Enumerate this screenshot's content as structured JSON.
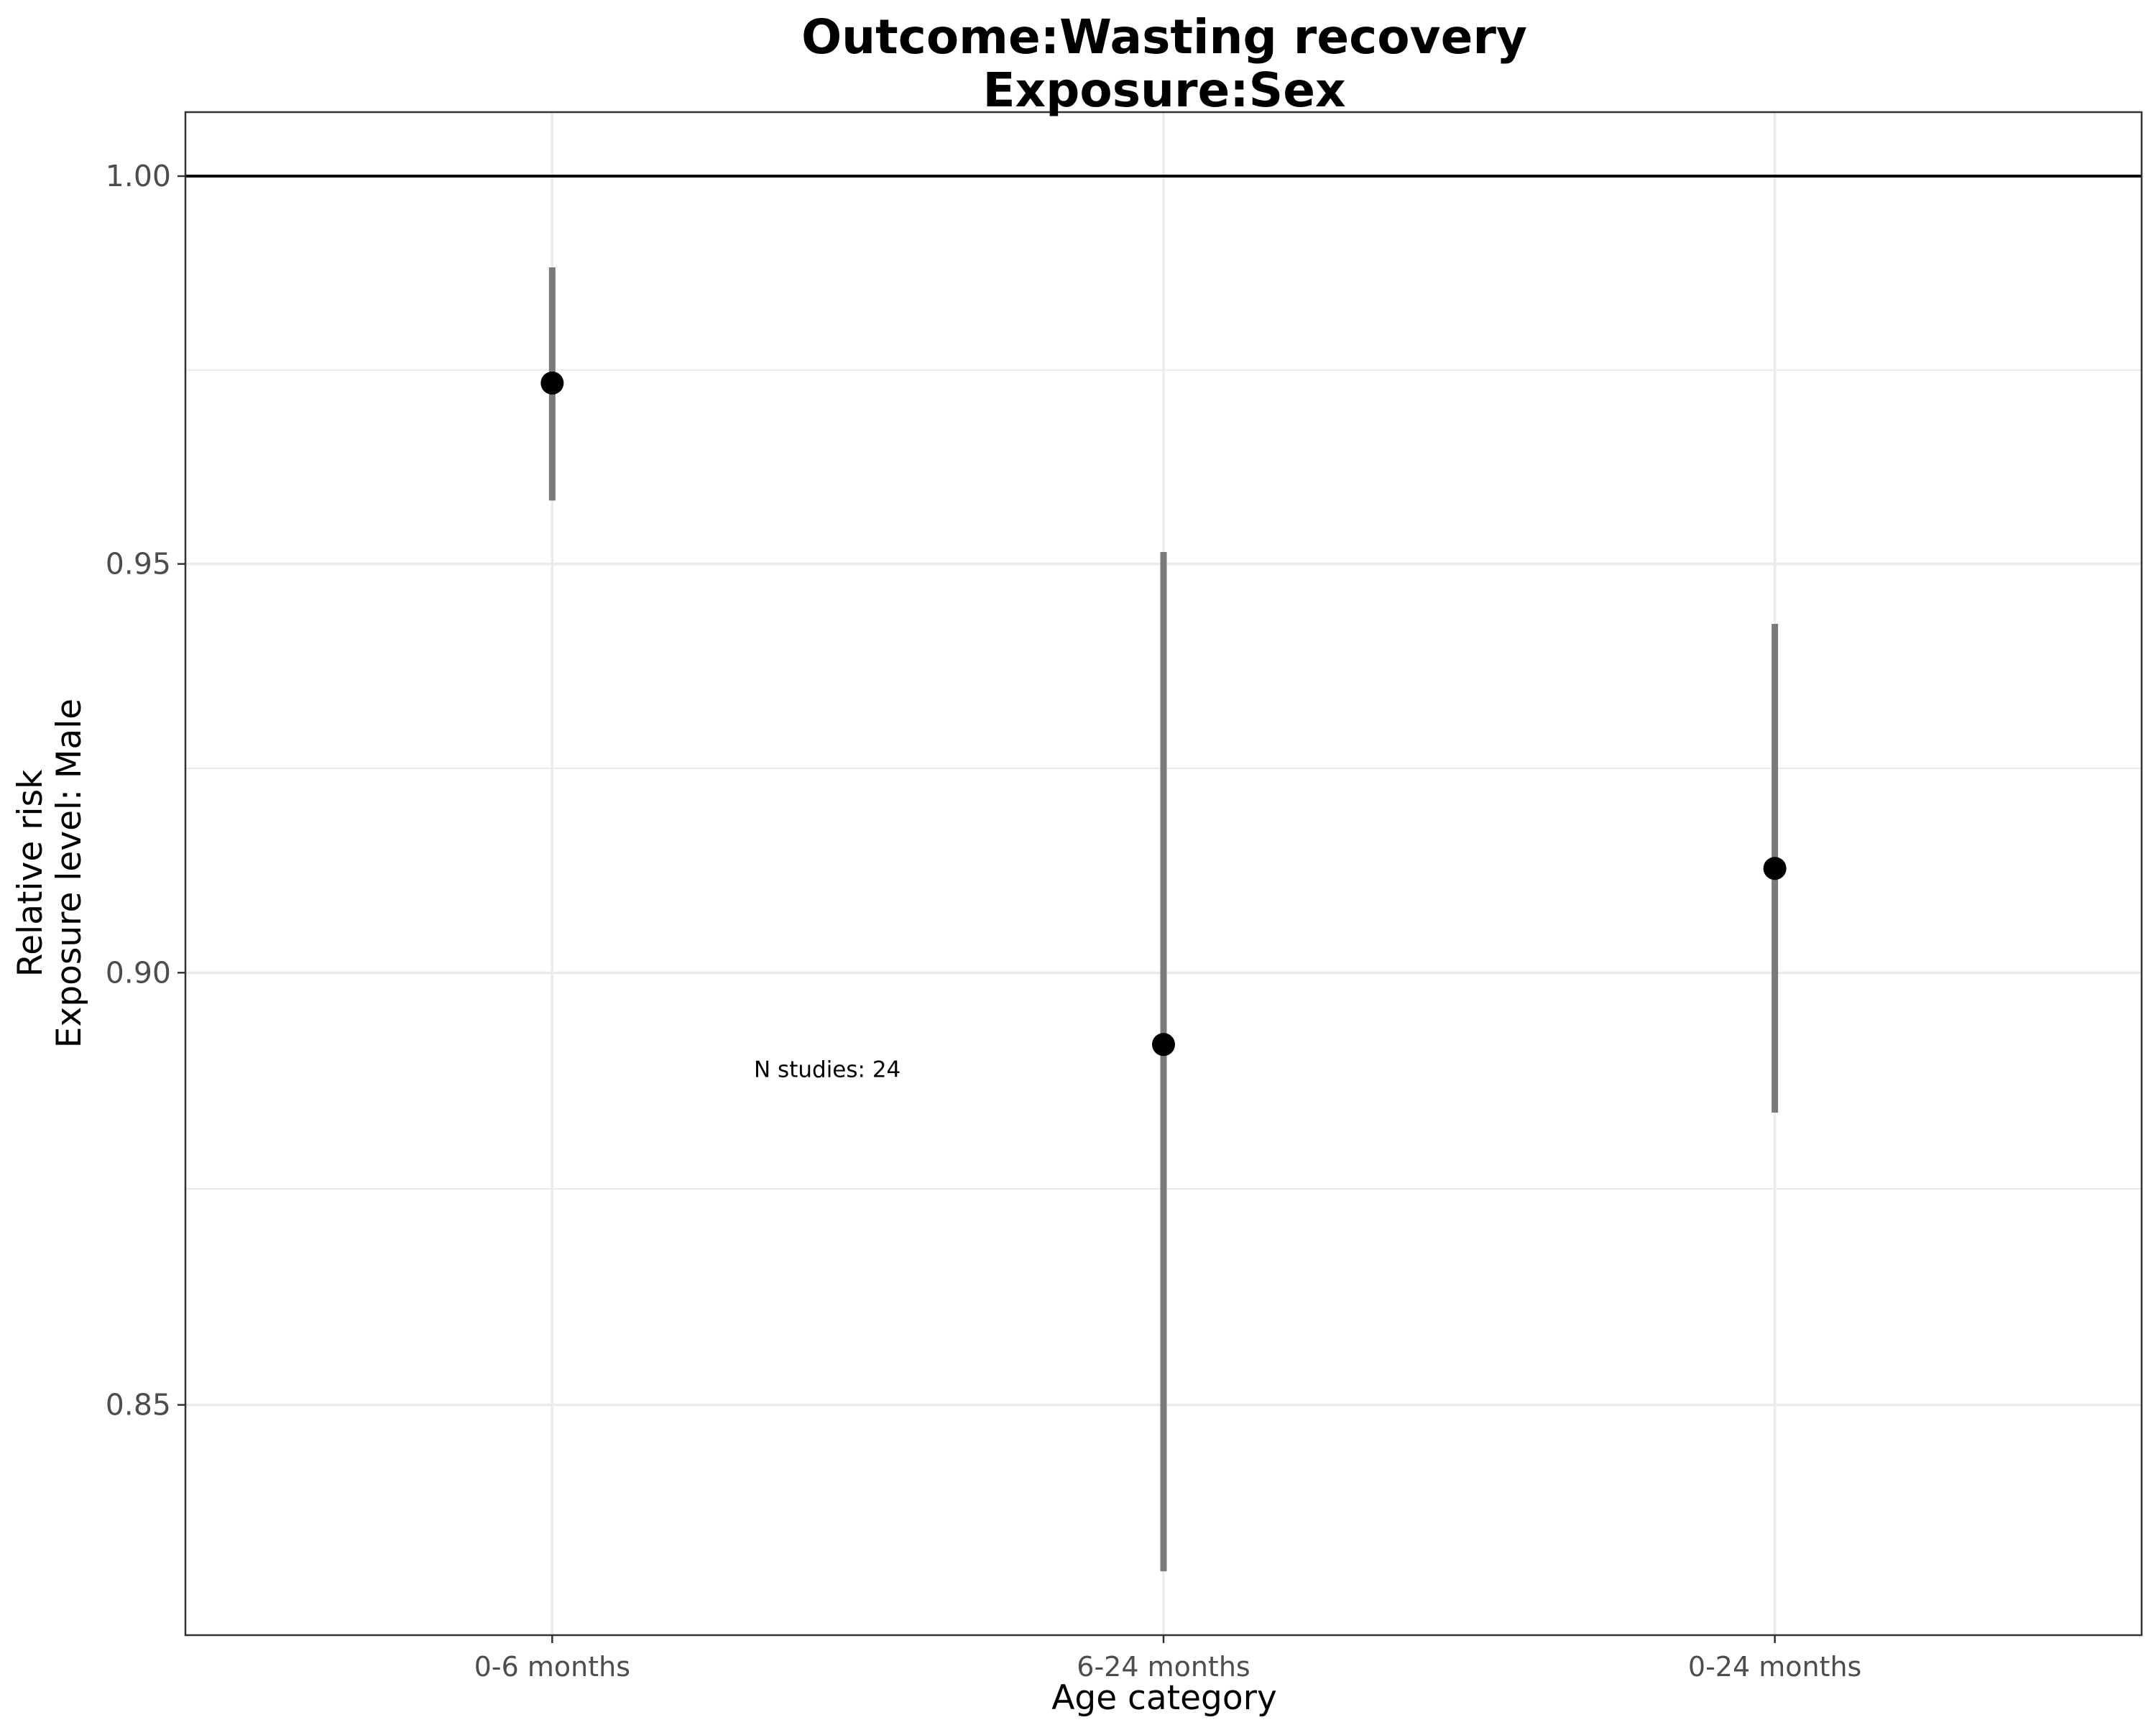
{
  "chart_data": {
    "type": "scatter",
    "title_line1": "Outcome:Wasting recovery",
    "title_line2": "Exposure:Sex",
    "xlabel": "Age category",
    "ylabel_line1": "Relative risk",
    "ylabel_line2": "Exposure level: Male",
    "categories": [
      "0-6 months",
      "6-24 months",
      "0-24 months"
    ],
    "series": [
      {
        "values": [
          0.973,
          0.8915,
          0.9125
        ],
        "ci_lower": [
          0.958,
          0.8315,
          0.8835
        ],
        "ci_upper": [
          0.988,
          0.9515,
          0.9425
        ]
      }
    ],
    "y_scale": "log",
    "ylim": [
      0.8245,
      1.0085
    ],
    "yticks": [
      0.85,
      0.9,
      0.95,
      1.0
    ],
    "ytick_labels": [
      "0.85",
      "0.90",
      "0.95",
      "1.00"
    ],
    "reference_line": 1.0,
    "annotation": "N studies: 24",
    "annotation_position": {
      "category": 0.45,
      "y": 0.8885
    },
    "grid": true,
    "colors": {
      "point": "#000000",
      "error_bar": "#7a7a7a",
      "grid": "#ebebeb",
      "panel_border": "#333333",
      "reference_line": "#000000"
    }
  }
}
